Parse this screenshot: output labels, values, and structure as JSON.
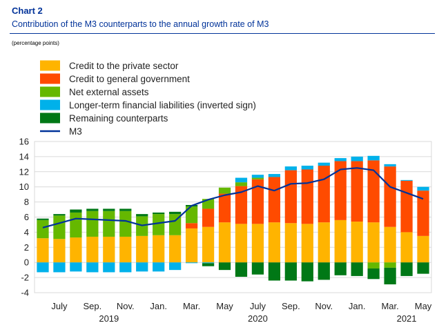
{
  "header": {
    "chart_label": "Chart 2",
    "title": "Contribution of the M3 counterparts to the annual growth rate of M3",
    "units": "(percentage points)"
  },
  "chart_data": {
    "type": "bar",
    "stacked": true,
    "grid": true,
    "legend_position": "top-left",
    "ylim": [
      -4,
      16
    ],
    "y_ticks": [
      -4,
      -2,
      0,
      2,
      4,
      6,
      8,
      10,
      12,
      14,
      16
    ],
    "x_tick_labels": [
      {
        "label": "July",
        "index": 1
      },
      {
        "label": "Sep.",
        "index": 3
      },
      {
        "label": "Nov.",
        "index": 5
      },
      {
        "label": "Jan.",
        "index": 7
      },
      {
        "label": "Mar.",
        "index": 9
      },
      {
        "label": "May",
        "index": 11
      },
      {
        "label": "July",
        "index": 13
      },
      {
        "label": "Sep.",
        "index": 15
      },
      {
        "label": "Nov.",
        "index": 17
      },
      {
        "label": "Jan.",
        "index": 19
      },
      {
        "label": "Mar.",
        "index": 21
      },
      {
        "label": "May",
        "index": 23
      }
    ],
    "year_labels": [
      {
        "label": "2019",
        "index": 4
      },
      {
        "label": "2020",
        "index": 13
      },
      {
        "label": "2021",
        "index": 22
      }
    ],
    "categories": [
      "Jun. 2019",
      "Jul. 2019",
      "Aug. 2019",
      "Sep. 2019",
      "Oct. 2019",
      "Nov. 2019",
      "Dec. 2019",
      "Jan. 2020",
      "Feb. 2020",
      "Mar. 2020",
      "Apr. 2020",
      "May 2020",
      "Jun. 2020",
      "Jul. 2020",
      "Aug. 2020",
      "Sep. 2020",
      "Oct. 2020",
      "Nov. 2020",
      "Dec. 2020",
      "Jan. 2021",
      "Feb. 2021",
      "Mar. 2021",
      "Apr. 2021",
      "May 2021"
    ],
    "series": [
      {
        "name": "Credit to the private sector",
        "kind": "bar",
        "color": "#FFB400",
        "values": [
          3.2,
          3.1,
          3.3,
          3.4,
          3.4,
          3.4,
          3.5,
          3.6,
          3.6,
          4.5,
          4.7,
          5.3,
          5.1,
          5.1,
          5.3,
          5.2,
          5.1,
          5.3,
          5.6,
          5.4,
          5.3,
          4.7,
          4.0,
          3.5
        ]
      },
      {
        "name": "Credit to general government",
        "kind": "bar",
        "color": "#FF4B00",
        "values": [
          0.0,
          0.0,
          0.0,
          0.0,
          0.0,
          0.0,
          0.0,
          0.0,
          0.0,
          0.7,
          2.4,
          3.8,
          5.0,
          5.9,
          6.0,
          7.0,
          7.2,
          7.5,
          7.8,
          8.0,
          8.2,
          8.0,
          6.8,
          6.0
        ]
      },
      {
        "name": "Net external assets",
        "kind": "bar",
        "color": "#65B800",
        "values": [
          2.4,
          3.1,
          3.3,
          3.4,
          3.4,
          3.4,
          2.6,
          2.8,
          2.8,
          2.2,
          1.3,
          0.8,
          0.5,
          0.2,
          0.0,
          0.0,
          0.0,
          0.0,
          0.0,
          0.0,
          -0.8,
          -0.7,
          0.0,
          0.0
        ]
      },
      {
        "name": "Longer-term financial liabilities (inverted sign)",
        "kind": "bar",
        "color": "#00B1EA",
        "values": [
          -1.3,
          -1.3,
          -1.2,
          -1.3,
          -1.3,
          -1.3,
          -1.2,
          -1.2,
          -1.0,
          -0.1,
          -0.1,
          0.0,
          0.6,
          0.4,
          0.4,
          0.5,
          0.5,
          0.4,
          0.4,
          0.6,
          0.6,
          0.3,
          0.1,
          0.5
        ]
      },
      {
        "name": "Remaining counterparts",
        "kind": "bar",
        "color": "#007816",
        "values": [
          0.2,
          0.2,
          0.4,
          0.3,
          0.3,
          0.3,
          0.3,
          0.2,
          0.3,
          0.2,
          -0.4,
          -1.0,
          -1.9,
          -1.6,
          -2.4,
          -2.4,
          -2.5,
          -2.3,
          -1.7,
          -1.8,
          -1.4,
          -2.2,
          -1.8,
          -1.5
        ]
      },
      {
        "name": "M3",
        "kind": "line",
        "color": "#003299",
        "values": [
          4.6,
          5.2,
          5.8,
          5.7,
          5.6,
          5.5,
          4.9,
          5.2,
          5.5,
          7.5,
          8.3,
          8.9,
          9.3,
          10.1,
          9.5,
          10.4,
          10.5,
          11.0,
          12.3,
          12.5,
          12.2,
          10.0,
          9.2,
          8.4
        ]
      }
    ]
  }
}
